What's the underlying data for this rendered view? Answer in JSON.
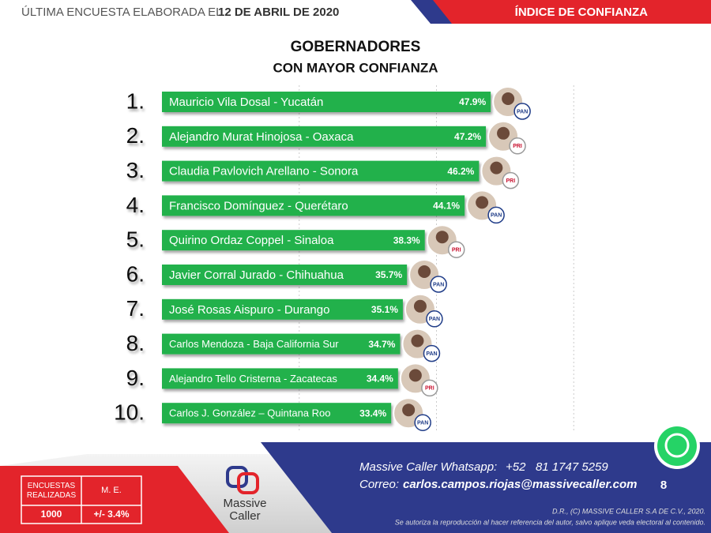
{
  "chart_data": {
    "type": "bar",
    "title": "GOBERNADORES",
    "subtitle": "CON MAYOR CONFIANZA",
    "ranks": [
      "1.",
      "2.",
      "3.",
      "4.",
      "5.",
      "6.",
      "7.",
      "8.",
      "9.",
      "10."
    ],
    "categories": [
      "Mauricio Vila Dosal - Yucatán",
      "Alejandro Murat Hinojosa - Oaxaca",
      "Claudia Pavlovich Arellano - Sonora",
      "Francisco Domínguez - Querétaro",
      "Quirino Ordaz Coppel - Sinaloa",
      "Javier Corral Jurado - Chihuahua",
      "José Rosas Aispuro - Durango",
      "Carlos Mendoza - Baja California Sur",
      "Alejandro Tello Cristerna - Zacatecas",
      "Carlos J. González – Quintana Roo"
    ],
    "values": [
      47.9,
      47.2,
      46.2,
      44.1,
      38.3,
      35.7,
      35.1,
      34.7,
      34.4,
      33.4
    ],
    "value_labels": [
      "47.9%",
      "47.2%",
      "46.2%",
      "44.1%",
      "38.3%",
      "35.7%",
      "35.1%",
      "34.7%",
      "34.4%",
      "33.4%"
    ],
    "parties": [
      "PAN",
      "PRI",
      "PRI",
      "PAN",
      "PRI",
      "PAN",
      "PAN",
      "PAN",
      "PRI",
      "PAN"
    ],
    "color": "#22b14c",
    "xlim": [
      0,
      80
    ],
    "xticks": [
      20,
      40,
      60
    ],
    "grid": true
  },
  "header": {
    "prefix": "ÚLTIMA ENCUESTA ELABORADA EL",
    "date": "12 DE ABRIL DE 2020",
    "section": "ÍNDICE DE CONFIANZA"
  },
  "footer": {
    "table": {
      "headers": [
        "ENCUESTAS REALIZADAS",
        "M. E."
      ],
      "values": [
        1000,
        "+/- 3.4%"
      ]
    },
    "logo": [
      "Massive",
      "Caller"
    ],
    "whatsapp_label": "Massive Caller Whatsapp:",
    "whatsapp": "+52   81 1747 5259",
    "email_label": "Correo:",
    "email": "carlos.campos.riojas@massivecaller.com",
    "page": "8",
    "copyright": "D.R., (C) MASSIVE CALLER S.A DE C.V., 2020.",
    "notice": "Se autoriza la reproducción al hacer referencia del autor, salvo aplique veda electoral al contenido."
  }
}
